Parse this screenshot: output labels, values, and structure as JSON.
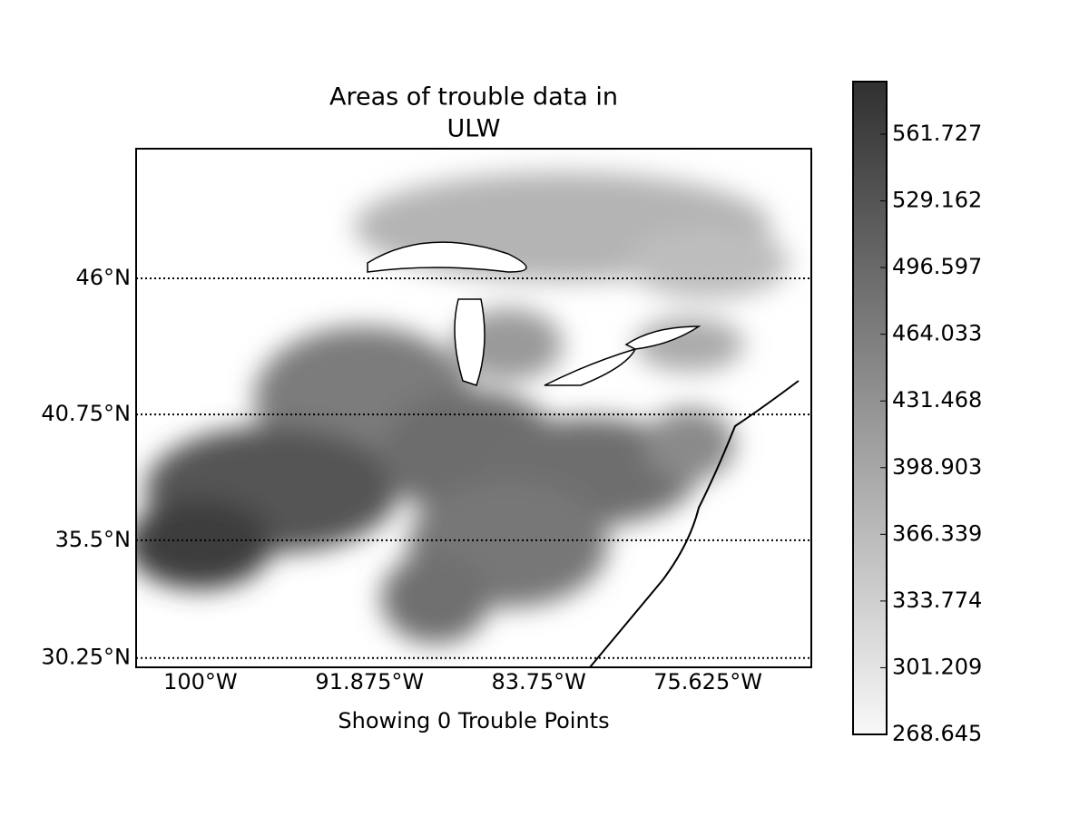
{
  "title": [
    "Areas of trouble data in",
    "ULW"
  ],
  "map": {
    "xlim": [
      -103.09,
      -70.66
    ],
    "ylim": [
      29.82,
      50.58
    ],
    "projection": "mercator",
    "xticks": [
      {
        "value": -100,
        "label": "100°W"
      },
      {
        "value": -91.875,
        "label": "91.875°W"
      },
      {
        "value": -83.75,
        "label": "83.75°W"
      },
      {
        "value": -75.625,
        "label": "75.625°W"
      }
    ],
    "yticks": [
      {
        "value": 46,
        "label": "46°N"
      },
      {
        "value": 40.75,
        "label": "40.75°N"
      },
      {
        "value": 35.5,
        "label": "35.5°N"
      },
      {
        "value": 30.25,
        "label": "30.25°N"
      }
    ],
    "xlabel": "Showing 0 Trouble Points"
  },
  "colorbar": {
    "lim": [
      268.645,
      587.4
    ],
    "colors": [
      "#f8f8f8",
      "#303030"
    ],
    "ticks": [
      268.645,
      301.209,
      333.774,
      366.339,
      398.903,
      431.468,
      464.033,
      496.597,
      529.162,
      561.727
    ]
  }
}
